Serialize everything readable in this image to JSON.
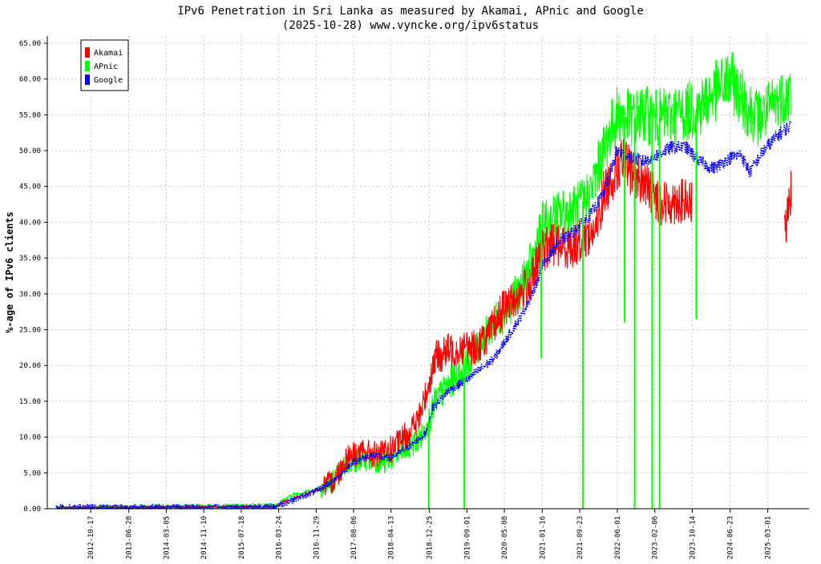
{
  "chart_data": {
    "type": "line",
    "title_line1": "IPv6 Penetration in Sri Lanka as measured by Akamai, APnic and Google",
    "title_line2": "(2025-10-28) www.vyncke.org/ipv6status",
    "xlabel": "",
    "ylabel": "%-age of IPv6 clients",
    "ylim": [
      0,
      66
    ],
    "y_ticks": [
      "0.00",
      "5.00",
      "10.00",
      "15.00",
      "20.00",
      "25.00",
      "30.00",
      "35.00",
      "40.00",
      "45.00",
      "50.00",
      "55.00",
      "60.00",
      "65.00"
    ],
    "x_range": [
      "2012-01-01",
      "2025-12-01"
    ],
    "x_ticks": [
      "2012-10-17",
      "2013-06-28",
      "2014-03-05",
      "2014-11-10",
      "2015-07-18",
      "2016-03-24",
      "2016-11-29",
      "2017-08-06",
      "2018-04-13",
      "2018-12-25",
      "2019-09-01",
      "2020-05-08",
      "2021-01-16",
      "2021-09-23",
      "2022-06-01",
      "2023-02-06",
      "2023-10-14",
      "2024-06-23",
      "2025-03-01"
    ],
    "grid": true,
    "legend_position": "top-left",
    "series": [
      {
        "name": "Akamai",
        "color": "#ff0000",
        "style": "solid",
        "points": [
          [
            "2012-03-01",
            0.1
          ],
          [
            "2015-09-01",
            0.3
          ],
          [
            "2016-03-01",
            0.2
          ],
          [
            "2016-05-01",
            1.0
          ],
          [
            "2016-09-01",
            1.8
          ],
          [
            "2017-01-01",
            2.8
          ],
          [
            "2017-04-01",
            4.0
          ],
          [
            "2017-07-01",
            7.5
          ],
          [
            "2017-11-01",
            7.8
          ],
          [
            "2018-02-01",
            7.5
          ],
          [
            "2018-05-01",
            8.5
          ],
          [
            "2018-08-01",
            10.5
          ],
          [
            "2018-10-15",
            12.5
          ],
          [
            "2018-12-15",
            17.0
          ],
          [
            "2019-02-01",
            21.0
          ],
          [
            "2019-05-01",
            22.0
          ],
          [
            "2019-08-01",
            22.5
          ],
          [
            "2019-11-01",
            22.5
          ],
          [
            "2020-02-01",
            24.5
          ],
          [
            "2020-05-01",
            28.0
          ],
          [
            "2020-08-01",
            29.5
          ],
          [
            "2020-11-01",
            31.5
          ],
          [
            "2021-01-16",
            36.0
          ],
          [
            "2021-04-01",
            37.0
          ],
          [
            "2021-08-01",
            36.5
          ],
          [
            "2021-11-01",
            38.0
          ],
          [
            "2022-01-15",
            39.0
          ],
          [
            "2022-03-01",
            44.0
          ],
          [
            "2022-05-01",
            46.5
          ],
          [
            "2022-07-01",
            48.5
          ],
          [
            "2022-10-01",
            46.5
          ],
          [
            "2022-12-01",
            45.5
          ],
          [
            "2023-01-15",
            44.0
          ],
          [
            "2023-04-01",
            42.5
          ],
          [
            "2023-07-01",
            43.0
          ],
          [
            "2023-10-10",
            42.5
          ],
          [
            "2025-06-20",
            39.0
          ],
          [
            "2025-07-15",
            40.5
          ],
          [
            "2025-08-05",
            45.0
          ]
        ]
      },
      {
        "name": "APnic",
        "color": "#00ff00",
        "style": "solid",
        "points": [
          [
            "2012-03-01",
            0.1
          ],
          [
            "2013-03-01",
            0.2
          ],
          [
            "2014-01-01",
            0.3
          ],
          [
            "2015-06-01",
            0.4
          ],
          [
            "2016-03-01",
            0.5
          ],
          [
            "2016-07-01",
            2.0
          ],
          [
            "2016-11-01",
            2.5
          ],
          [
            "2017-03-01",
            3.5
          ],
          [
            "2017-07-01",
            6.5
          ],
          [
            "2017-11-01",
            7.0
          ],
          [
            "2018-03-01",
            6.5
          ],
          [
            "2018-07-01",
            8.0
          ],
          [
            "2018-11-01",
            10.0
          ],
          [
            "2018-12-25",
            12.5
          ],
          [
            "2019-02-01",
            15.0
          ],
          [
            "2019-06-01",
            18.0
          ],
          [
            "2019-09-01",
            20.0
          ],
          [
            "2019-12-01",
            23.0
          ],
          [
            "2020-03-01",
            26.0
          ],
          [
            "2020-06-01",
            28.0
          ],
          [
            "2020-09-01",
            31.0
          ],
          [
            "2020-11-15",
            35.0
          ],
          [
            "2021-01-16",
            39.5
          ],
          [
            "2021-05-01",
            41.0
          ],
          [
            "2021-09-01",
            42.0
          ],
          [
            "2021-12-01",
            44.0
          ],
          [
            "2022-02-01",
            48.0
          ],
          [
            "2022-04-01",
            52.0
          ],
          [
            "2022-06-01",
            55.0
          ],
          [
            "2022-09-01",
            54.5
          ],
          [
            "2022-12-01",
            55.0
          ],
          [
            "2023-03-01",
            54.5
          ],
          [
            "2023-06-01",
            55.0
          ],
          [
            "2023-09-01",
            55.5
          ],
          [
            "2023-12-01",
            56.0
          ],
          [
            "2024-03-01",
            58.0
          ],
          [
            "2024-06-23",
            60.0
          ],
          [
            "2024-10-01",
            56.5
          ],
          [
            "2025-01-01",
            54.5
          ],
          [
            "2025-03-01",
            55.5
          ],
          [
            "2025-06-01",
            57.5
          ],
          [
            "2025-08-01",
            58.0
          ]
        ]
      },
      {
        "name": "Google",
        "color": "#0000ff",
        "style": "dotted",
        "points": [
          [
            "2012-03-01",
            0.2
          ],
          [
            "2015-06-01",
            0.2
          ],
          [
            "2016-03-01",
            0.3
          ],
          [
            "2016-08-01",
            1.5
          ],
          [
            "2016-12-01",
            2.5
          ],
          [
            "2017-04-01",
            4.0
          ],
          [
            "2017-08-01",
            6.5
          ],
          [
            "2017-12-01",
            7.5
          ],
          [
            "2018-04-01",
            7.0
          ],
          [
            "2018-08-01",
            8.5
          ],
          [
            "2018-12-01",
            10.5
          ],
          [
            "2019-01-15",
            14.0
          ],
          [
            "2019-05-01",
            16.5
          ],
          [
            "2019-09-01",
            18.0
          ],
          [
            "2019-12-01",
            19.5
          ],
          [
            "2020-03-01",
            21.0
          ],
          [
            "2020-06-01",
            24.0
          ],
          [
            "2020-09-01",
            27.0
          ],
          [
            "2020-12-01",
            31.0
          ],
          [
            "2021-01-16",
            34.0
          ],
          [
            "2021-05-01",
            37.0
          ],
          [
            "2021-09-01",
            39.0
          ],
          [
            "2021-12-01",
            41.0
          ],
          [
            "2022-03-01",
            44.0
          ],
          [
            "2022-06-01",
            50.0
          ],
          [
            "2022-09-01",
            49.0
          ],
          [
            "2022-12-01",
            48.5
          ],
          [
            "2023-03-01",
            49.5
          ],
          [
            "2023-06-01",
            50.5
          ],
          [
            "2023-09-01",
            50.5
          ],
          [
            "2023-12-01",
            48.5
          ],
          [
            "2024-03-01",
            47.5
          ],
          [
            "2024-06-23",
            49.0
          ],
          [
            "2024-09-01",
            49.5
          ],
          [
            "2024-11-01",
            47.0
          ],
          [
            "2025-02-01",
            50.0
          ],
          [
            "2025-05-01",
            52.0
          ],
          [
            "2025-08-01",
            53.5
          ]
        ]
      }
    ],
    "drop_events": [
      {
        "series": "APnic",
        "date": "2018-12-20",
        "value": 0.0
      },
      {
        "series": "APnic",
        "date": "2019-08-15",
        "value": 0.0
      },
      {
        "series": "APnic",
        "date": "2021-01-10",
        "value": 21.0
      },
      {
        "series": "APnic",
        "date": "2021-10-15",
        "value": 0.0
      },
      {
        "series": "APnic",
        "date": "2022-09-25",
        "value": 0.0
      },
      {
        "series": "APnic",
        "date": "2023-01-20",
        "value": 0.0
      },
      {
        "series": "APnic",
        "date": "2023-03-10",
        "value": 0.0
      },
      {
        "series": "APnic",
        "date": "2023-11-10",
        "value": 26.5
      },
      {
        "series": "APnic",
        "date": "2022-07-20",
        "value": 26.0
      }
    ]
  }
}
